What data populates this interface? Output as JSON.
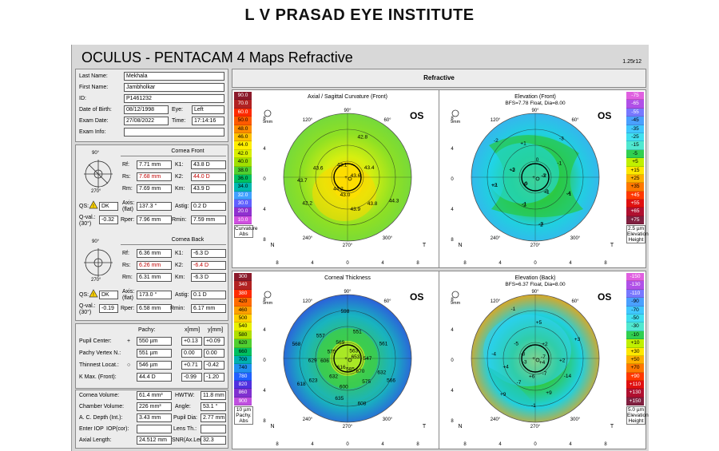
{
  "institute": "L V PRASAD EYE INSTITUTE",
  "header": {
    "title": "OCULUS  -  PENTACAM   4 Maps Refractive",
    "version": "1.25r12"
  },
  "patient": {
    "last_name_label": "Last Name:",
    "last_name": "Mekhala",
    "first_name_label": "First Name:",
    "first_name": "Jambholkar",
    "id_label": "ID:",
    "id": "P1461232",
    "dob_label": "Date of Birth:",
    "dob": "08/12/1998",
    "eye_label": "Eye:",
    "eye": "Left",
    "exam_date_label": "Exam Date:",
    "exam_date": "27/08/2022",
    "time_label": "Time:",
    "time": "17:14:16",
    "exam_info_label": "Exam Info:",
    "exam_info": ""
  },
  "cornea_front": {
    "title": "Cornea Front",
    "rf_label": "Rf:",
    "rf": "7.71 mm",
    "k1_label": "K1:",
    "k1": "43.8 D",
    "rs_label": "Rs:",
    "rs": "7.68 mm",
    "k2_label": "K2:",
    "k2": "44.0 D",
    "rm_label": "Rm:",
    "rm": "7.69 mm",
    "km_label": "Km:",
    "km": "43.9 D",
    "qs_label": "QS:",
    "qs": "DK",
    "axis_label": "Axis:",
    "axis_sub": "(flat)",
    "axis": "137.3 °",
    "astig_label": "Astig:",
    "astig": "0.2 D",
    "qval_label": "Q-val.:",
    "qval_sub": "(30°)",
    "qval": "-0.32",
    "rper_label": "Rper:",
    "rper": "7.96 mm",
    "rmin_label": "Rmin:",
    "rmin": "7.59 mm"
  },
  "cornea_back": {
    "title": "Cornea Back",
    "rf_label": "Rf:",
    "rf": "6.36 mm",
    "k1_label": "K1:",
    "k1": "-6.3 D",
    "rs_label": "Rs:",
    "rs": "6.26 mm",
    "k2_label": "K2:",
    "k2": "-6.4 D",
    "rm_label": "Rm:",
    "rm": "6.31 mm",
    "km_label": "Km:",
    "km": "-6.3 D",
    "qs_label": "QS:",
    "qs": "DK",
    "axis_label": "Axis:",
    "axis_sub": "(flat)",
    "axis": "173.0 °",
    "astig_label": "Astig:",
    "astig": "0.1 D",
    "qval_label": "Q-val.:",
    "qval_sub": "(30°)",
    "qval": "-0.19",
    "rper_label": "Rper:",
    "rper": "6.58 mm",
    "rmin_label": "Rmin:",
    "rmin": "6.17 mm"
  },
  "pachy": {
    "col_pachy": "Pachy:",
    "col_x": "x[mm]",
    "col_y": "y[mm]",
    "rows": [
      {
        "label": "Pupil Center:",
        "sym": "+",
        "pachy": "550 µm",
        "x": "+0.13",
        "y": "+0.09"
      },
      {
        "label": "Pachy Vertex N.:",
        "sym": "",
        "pachy": "551 µm",
        "x": "0.00",
        "y": "0.00"
      },
      {
        "label": "Thinnest Locat.:",
        "sym": "○",
        "pachy": "546 µm",
        "x": "+0.71",
        "y": "-0.42"
      },
      {
        "label": "K Max. (Front):",
        "sym": "",
        "pachy": "44.4 D",
        "x": "-0.99",
        "y": "-1.20"
      }
    ]
  },
  "volume": {
    "cornea_volume_label": "Cornea Volume:",
    "cornea_volume": "61.4 mm³",
    "hwtw_label": "HWTW:",
    "hwtw": "11.8 mm",
    "chamber_volume_label": "Chamber Volume:",
    "chamber_volume": "226 mm³",
    "angle_label": "Angle:",
    "angle": "53.1 °",
    "acdepth_label": "A. C. Depth (Int.):",
    "acdepth": "3.43 mm",
    "pupil_dia_label": "Pupil Dia:",
    "pupil_dia": "2.77 mm",
    "enter_iop": "Enter IOP",
    "iop_cor": "IOP(cor):",
    "lens_th_label": "Lens Th.:",
    "lens_th": "",
    "axial_length_label": "Axial Length:",
    "axial_length": "24.512 mm",
    "snr_label": "SNR(Ax.Len",
    "snr": "32.3"
  },
  "refractive_title": "Refractive",
  "maps": {
    "axial": {
      "title": "Axial / Sagittal Curvature (Front)",
      "subtitle": "",
      "eye": "OS",
      "zoom": "9mm",
      "values": [
        "43.6",
        "43.8",
        "43.0",
        "42.2",
        "43.6",
        "43.1",
        "42.8",
        "43.4",
        "44.3",
        "43.9",
        "44.2",
        "43.7"
      ]
    },
    "elev_front": {
      "title": "Elevation (Front)",
      "subtitle": "BFS=7.78 Float, Dia=8.00",
      "eye": "OS",
      "zoom": "9mm",
      "values": [
        "-3",
        "-4",
        "-5",
        "-3",
        "-1",
        "0",
        "+1",
        "-2",
        "-2",
        "+1",
        "0",
        "-3",
        "-1",
        "-2",
        "-1",
        "+1",
        "-2",
        "-2",
        "0",
        "+2",
        "+3"
      ]
    },
    "thickness": {
      "title": "Corneal Thickness",
      "subtitle": "",
      "eye": "OS",
      "zoom": "9mm",
      "values": [
        "653",
        "632",
        "670",
        "608",
        "600",
        "616",
        "623",
        "606",
        "568",
        "557",
        "569",
        "598",
        "551",
        "563",
        "561",
        "547",
        "566",
        "575",
        "585",
        "635",
        "632",
        "618",
        "629",
        "575"
      ]
    },
    "elev_back": {
      "title": "Elevation (Back)",
      "subtitle": "BFS=6.37 Float, Dia=8.00",
      "eye": "OS",
      "zoom": "9mm",
      "values": [
        "-7",
        "-14",
        "-7",
        "-1",
        "-7",
        "-3",
        "-4",
        "-5",
        "-1",
        "+5",
        "+2",
        "+3",
        "+2",
        "+4",
        "+9",
        "+6",
        "+9",
        "+4",
        "-8"
      ]
    },
    "compass": {
      "top": "90°",
      "bottom": "270°",
      "left": "180°",
      "right": "0°",
      "n": "N",
      "t": "T",
      "a120": "120°",
      "a60": "60°",
      "a240": "240°",
      "a300": "300°",
      "a330": "330°",
      "a30": "30°",
      "a210": "210°",
      "a150": "150°"
    },
    "axis_ticks": [
      "8",
      "4",
      "0",
      "4",
      "8"
    ]
  },
  "scales": {
    "curvature": {
      "values": [
        "90.0",
        "70.0",
        "60.0",
        "50.0",
        "48.0",
        "46.0",
        "44.0",
        "42.0",
        "40.0",
        "38.0",
        "36.0",
        "34.0",
        "32.0",
        "30.0",
        "20.0",
        "10.0"
      ],
      "colors": [
        "#8b1a2b",
        "#b22222",
        "#ff2a00",
        "#ff5a00",
        "#ff8c00",
        "#ffc000",
        "#ffee00",
        "#d8f000",
        "#a0e000",
        "#50d030",
        "#00c060",
        "#00b8b0",
        "#40a0ff",
        "#6060ff",
        "#9030d0",
        "#d050e0"
      ],
      "step": "",
      "label1": "Curvature",
      "label2": "Abs"
    },
    "elevation_front": {
      "values": [
        "-75",
        "-65",
        "-55",
        "-45",
        "-35",
        "-25",
        "-15",
        "-5",
        "+5",
        "+15",
        "+25",
        "+35",
        "+45",
        "+55",
        "+65",
        "+75"
      ],
      "colors": [
        "#e060e0",
        "#b050e8",
        "#7878ff",
        "#4aa0ff",
        "#40c8ff",
        "#40e0f0",
        "#50e8d0",
        "#30d050",
        "#c0f000",
        "#ffe800",
        "#ffb000",
        "#ff7800",
        "#ff3800",
        "#e01010",
        "#b01030",
        "#802040"
      ],
      "step": "2.5 µm",
      "label1": "Elevation",
      "label2": "Height"
    },
    "thickness": {
      "values": [
        "300",
        "340",
        "380",
        "420",
        "460",
        "500",
        "540",
        "580",
        "620",
        "660",
        "700",
        "740",
        "780",
        "820",
        "860",
        "900"
      ],
      "colors": [
        "#8b1a2b",
        "#b22222",
        "#ff2a00",
        "#ff6a00",
        "#ffa000",
        "#ffd000",
        "#eaf000",
        "#b0e000",
        "#50d030",
        "#00c060",
        "#00b0b0",
        "#2090f0",
        "#2060ff",
        "#5030e0",
        "#8030d0",
        "#c050e0"
      ],
      "step": "10 µm",
      "label1": "Pachy.",
      "label2": "Abs"
    },
    "elevation_back": {
      "values": [
        "-150",
        "-130",
        "-110",
        "-90",
        "-70",
        "-50",
        "-30",
        "-10",
        "+10",
        "+30",
        "+50",
        "+70",
        "+90",
        "+110",
        "+130",
        "+150"
      ],
      "colors": [
        "#e060e0",
        "#b050e8",
        "#7878ff",
        "#4aa0ff",
        "#40c8ff",
        "#40e0f0",
        "#50e8d0",
        "#30d050",
        "#c0f000",
        "#ffe800",
        "#ffb000",
        "#ff7800",
        "#ff3800",
        "#e01010",
        "#b01030",
        "#802040"
      ],
      "step": "5.0 µm",
      "label1": "Elevation",
      "label2": "Height"
    }
  }
}
